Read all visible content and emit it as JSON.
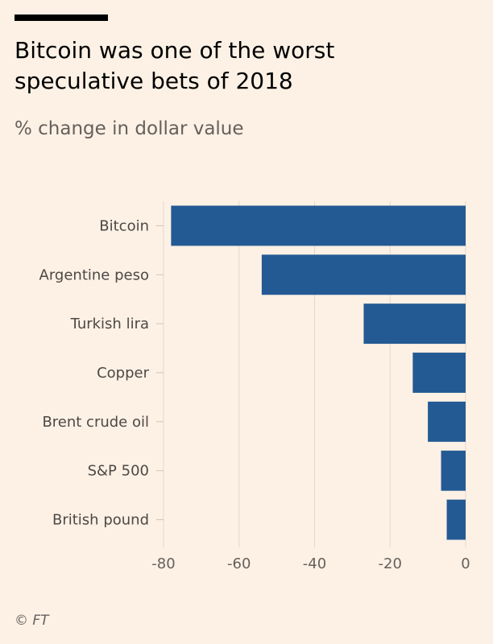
{
  "chart_data": {
    "type": "bar",
    "orientation": "horizontal",
    "title": "Bitcoin was one of the worst speculative bets of 2018",
    "subtitle": "% change in dollar value",
    "categories": [
      "Bitcoin",
      "Argentine peso",
      "Turkish lira",
      "Copper",
      "Brent crude oil",
      "S&P 500",
      "British pound"
    ],
    "values": [
      -78,
      -54,
      -27,
      -14,
      -10,
      -6.5,
      -5
    ],
    "xlim": [
      -80,
      0
    ],
    "xticks": [
      "-80",
      "-60",
      "-40",
      "-20",
      "0"
    ],
    "grid": "vertical",
    "bar_color": "#245a93"
  },
  "source": "© FT"
}
